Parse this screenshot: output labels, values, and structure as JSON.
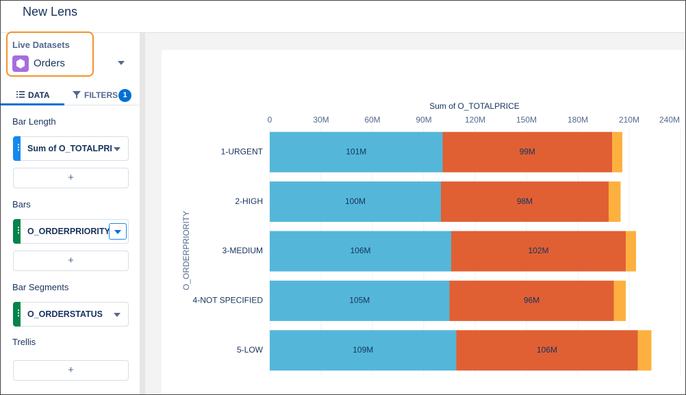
{
  "header": {
    "title": "New Lens"
  },
  "sidebar": {
    "dataset_label": "Live Datasets",
    "dataset": "Orders",
    "tabs": [
      {
        "label": "DATA"
      },
      {
        "label": "FILTERS",
        "badge": 1
      }
    ],
    "sections": [
      {
        "title": "Bar Length",
        "field": "Sum of O_TOTALPRI",
        "add": "+"
      },
      {
        "title": "Bars",
        "field": "O_ORDERPRIORITY",
        "add": "+"
      },
      {
        "title": "Bar Segments",
        "field": "O_ORDERSTATUS"
      },
      {
        "title": "Trellis",
        "add": "+"
      }
    ]
  },
  "chart_data": {
    "type": "bar",
    "orientation": "horizontal",
    "stacked": true,
    "x_label": "Sum of O_TOTALPRICE",
    "y_label": "O_ORDERPRIORITY",
    "categories": [
      "1-URGENT",
      "2-HIGH",
      "3-MEDIUM",
      "4-NOT SPECIFIED",
      "5-LOW"
    ],
    "series": [
      {
        "color": "#54b7d9",
        "values": [
          101,
          100,
          106,
          105,
          109
        ],
        "value_labels": [
          "101M",
          "100M",
          "106M",
          "105M",
          "109M"
        ]
      },
      {
        "color": "#e06034",
        "values": [
          99,
          98,
          102,
          96,
          106
        ],
        "value_labels": [
          "99M",
          "98M",
          "102M",
          "96M",
          "106M"
        ]
      },
      {
        "color": "#fdb03f",
        "values": [
          6,
          7,
          6,
          7,
          8
        ]
      }
    ],
    "xlim": [
      0,
      240
    ],
    "xticks": [
      0,
      {
        "value": 30,
        "label": "30M"
      },
      {
        "value": 60,
        "label": "60M"
      },
      {
        "value": 90,
        "label": "90M"
      },
      {
        "value": 120,
        "label": "120M"
      },
      {
        "value": 150,
        "label": "150M"
      },
      {
        "value": 180,
        "label": "180M"
      },
      {
        "value": 210,
        "label": "210M"
      },
      {
        "value": 240,
        "label": "240M"
      }
    ],
    "grid": true
  }
}
